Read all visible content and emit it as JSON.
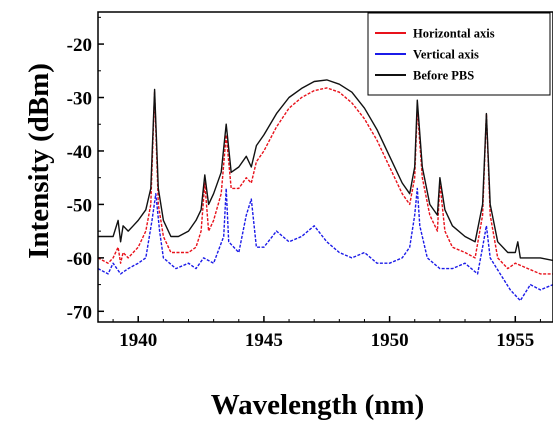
{
  "chart_data": {
    "type": "line",
    "title": "",
    "xlabel": "Wavelength (nm)",
    "ylabel": "Intensity (dBm)",
    "xlim": [
      1938.4,
      1956.5
    ],
    "ylim": [
      -72,
      -14
    ],
    "xticks": [
      1940,
      1945,
      1950,
      1955
    ],
    "xtick_labels": [
      "1940",
      "1945",
      "1950",
      "1955"
    ],
    "yticks": [
      -70,
      -60,
      -50,
      -40,
      -30,
      -20
    ],
    "ytick_labels": [
      "-70",
      "-60",
      "-50",
      "-40",
      "-30",
      "-20"
    ],
    "grid": false,
    "legend_position": "top-right",
    "series": [
      {
        "name": "Horizontal axis",
        "color": "#e8121b",
        "style": "dashed",
        "x": [
          1938.4,
          1938.8,
          1939.0,
          1939.2,
          1939.3,
          1939.4,
          1939.6,
          1939.8,
          1940.0,
          1940.3,
          1940.5,
          1940.65,
          1940.8,
          1941.0,
          1941.3,
          1941.6,
          1942.0,
          1942.3,
          1942.5,
          1942.65,
          1942.8,
          1943.0,
          1943.3,
          1943.5,
          1943.7,
          1944.0,
          1944.3,
          1944.5,
          1944.7,
          1945.0,
          1945.5,
          1946.0,
          1946.5,
          1947.0,
          1947.5,
          1948.0,
          1948.5,
          1949.0,
          1949.5,
          1950.0,
          1950.5,
          1950.8,
          1951.0,
          1951.1,
          1951.3,
          1951.6,
          1951.9,
          1952.0,
          1952.2,
          1952.5,
          1953.0,
          1953.4,
          1953.7,
          1953.85,
          1954.0,
          1954.3,
          1954.7,
          1955.0,
          1955.5,
          1956.0,
          1956.5
        ],
        "y": [
          -60,
          -61,
          -60,
          -58,
          -61,
          -59,
          -60,
          -59,
          -58,
          -55,
          -50,
          -29,
          -50,
          -56,
          -59,
          -59,
          -59,
          -58,
          -55,
          -46,
          -55,
          -53,
          -48,
          -37,
          -47,
          -47,
          -45,
          -46,
          -42,
          -40,
          -35.5,
          -32,
          -30,
          -28.7,
          -28.2,
          -29,
          -31,
          -34,
          -38,
          -43,
          -48,
          -50,
          -45,
          -32,
          -45,
          -52,
          -55,
          -46,
          -55,
          -58,
          -59,
          -60,
          -52,
          -33,
          -52,
          -60,
          -62,
          -61,
          -62,
          -63,
          -63
        ]
      },
      {
        "name": "Vertical axis",
        "color": "#1b1be8",
        "style": "dashed",
        "x": [
          1938.4,
          1938.8,
          1939.0,
          1939.3,
          1939.6,
          1940.0,
          1940.3,
          1940.55,
          1940.7,
          1940.85,
          1941.0,
          1941.5,
          1942.0,
          1942.3,
          1942.6,
          1943.0,
          1943.4,
          1943.5,
          1943.6,
          1944.0,
          1944.3,
          1944.5,
          1944.7,
          1945.0,
          1945.5,
          1946.0,
          1946.5,
          1947.0,
          1947.5,
          1948.0,
          1948.5,
          1949.0,
          1949.5,
          1950.0,
          1950.5,
          1950.8,
          1951.0,
          1951.1,
          1951.2,
          1951.5,
          1952.0,
          1952.5,
          1953.0,
          1953.5,
          1953.7,
          1953.85,
          1954.0,
          1954.4,
          1954.8,
          1955.2,
          1955.6,
          1956.0,
          1956.5
        ],
        "y": [
          -62,
          -63,
          -61,
          -63,
          -62,
          -61,
          -60,
          -53,
          -48,
          -55,
          -60,
          -62,
          -61,
          -62,
          -60,
          -61,
          -56,
          -47,
          -57,
          -59,
          -52,
          -49,
          -58,
          -58,
          -55,
          -57,
          -56,
          -54,
          -57,
          -59,
          -60,
          -59,
          -61,
          -61,
          -60,
          -58,
          -52,
          -47,
          -54,
          -60,
          -62,
          -62,
          -61,
          -63,
          -58,
          -54,
          -60,
          -63,
          -66,
          -68,
          -65,
          -66,
          -65
        ]
      },
      {
        "name": "Before PBS",
        "color": "#111111",
        "style": "solid",
        "x": [
          1938.4,
          1938.8,
          1939.0,
          1939.2,
          1939.3,
          1939.4,
          1939.6,
          1939.8,
          1940.0,
          1940.3,
          1940.5,
          1940.65,
          1940.8,
          1941.0,
          1941.3,
          1941.6,
          1942.0,
          1942.3,
          1942.5,
          1942.65,
          1942.8,
          1943.0,
          1943.3,
          1943.5,
          1943.7,
          1944.0,
          1944.3,
          1944.5,
          1944.7,
          1945.0,
          1945.5,
          1946.0,
          1946.5,
          1947.0,
          1947.5,
          1948.0,
          1948.5,
          1949.0,
          1949.5,
          1950.0,
          1950.5,
          1950.8,
          1951.0,
          1951.1,
          1951.3,
          1951.6,
          1951.9,
          1952.0,
          1952.2,
          1952.5,
          1953.0,
          1953.4,
          1953.7,
          1953.85,
          1954.0,
          1954.3,
          1954.7,
          1955.0,
          1955.1,
          1955.2,
          1955.5,
          1956.0,
          1956.5
        ],
        "y": [
          -56,
          -56,
          -56,
          -53,
          -57,
          -54,
          -55,
          -54,
          -53,
          -51,
          -47,
          -28.5,
          -47,
          -53,
          -56,
          -56,
          -55,
          -53,
          -51,
          -44.5,
          -50,
          -48,
          -44,
          -35,
          -44,
          -43,
          -41,
          -43,
          -39,
          -37,
          -33,
          -30,
          -28.3,
          -27,
          -26.7,
          -27.5,
          -29,
          -32,
          -36,
          -41,
          -46,
          -48,
          -43,
          -30.5,
          -43,
          -50,
          -52,
          -45,
          -51,
          -54,
          -56,
          -57,
          -50,
          -33,
          -50,
          -57,
          -59,
          -59,
          -57,
          -60,
          -60,
          -60,
          -60.5
        ]
      }
    ]
  }
}
